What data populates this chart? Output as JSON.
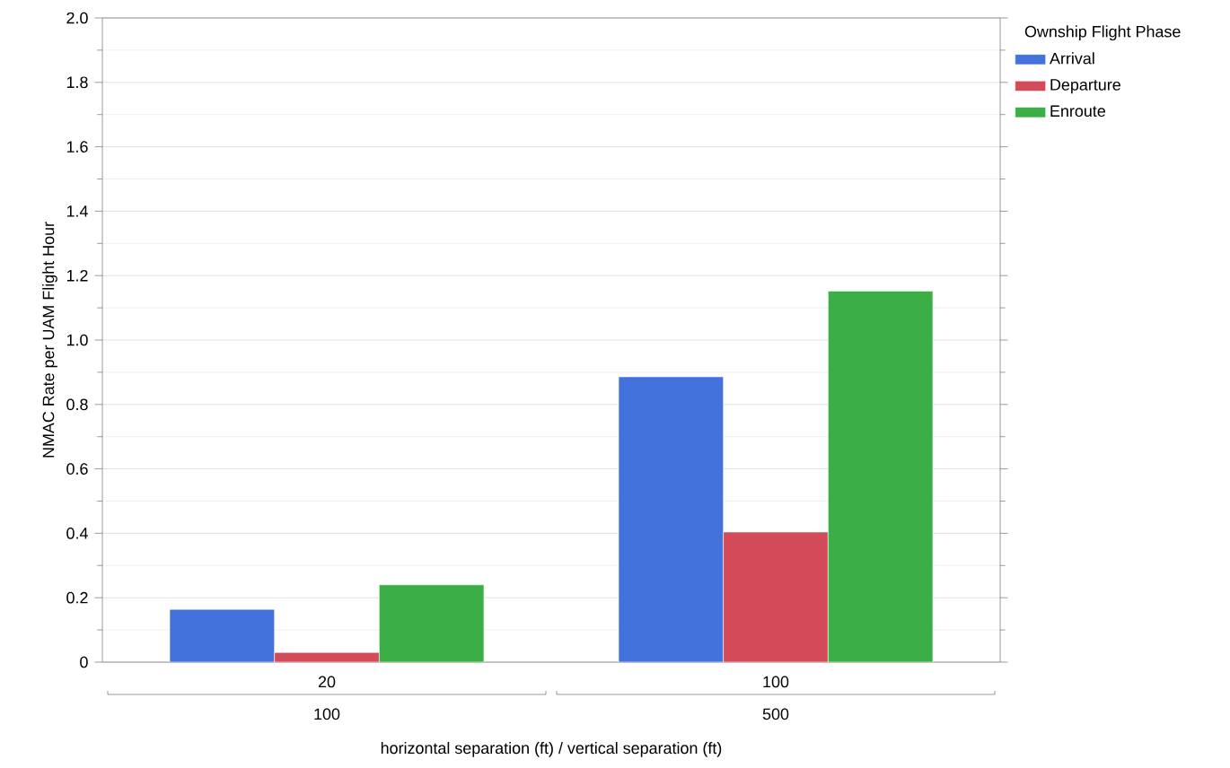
{
  "chart_data": {
    "type": "bar",
    "xlabel": "horizontal separation (ft) / vertical separation (ft)",
    "ylabel": "NMAC Rate per UAM Flight Hour",
    "legend_title": "Ownship Flight Phase",
    "categories": [
      "20",
      "100"
    ],
    "annotations": [
      "100",
      "500"
    ],
    "series": [
      {
        "name": "Arrival",
        "color": "#4472dd",
        "values": [
          0.164,
          0.886
        ]
      },
      {
        "name": "Departure",
        "color": "#d34a58",
        "values": [
          0.03,
          0.404
        ]
      },
      {
        "name": "Enroute",
        "color": "#3cae46",
        "values": [
          0.24,
          1.152
        ]
      }
    ],
    "ylim": [
      0,
      2
    ],
    "yticks": [
      0,
      0.2,
      0.4,
      0.6,
      0.8,
      {
        "value": 1,
        "label": "1.0"
      },
      1.2,
      1.4,
      1.6,
      1.8,
      {
        "value": 2,
        "label": "2.0"
      }
    ],
    "grid": "y",
    "legend": "top right"
  }
}
